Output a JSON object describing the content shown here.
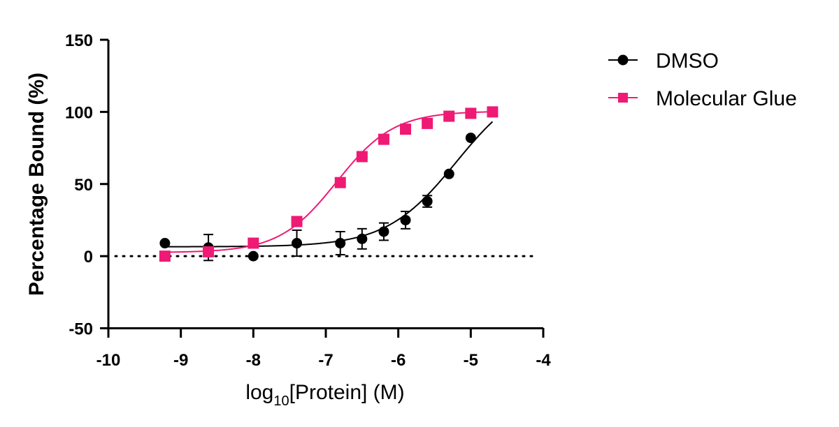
{
  "chart_data": {
    "type": "scatter",
    "xlabel": {
      "prefix": "log",
      "subscript": "10",
      "suffix": "[Protein] (M)"
    },
    "ylabel": "Percentage Bound (%)",
    "xlim": [
      -10,
      -4
    ],
    "ylim": [
      -50,
      150
    ],
    "x_ticks": [
      -10,
      -9,
      -8,
      -7,
      -6,
      -5,
      -4
    ],
    "y_ticks": [
      -50,
      0,
      50,
      100,
      150
    ],
    "grid": false,
    "reference_line": {
      "y": 0,
      "style": "dotted"
    },
    "legend_position": "top-right",
    "series": [
      {
        "name": "DMSO",
        "color": "#000000",
        "marker": "circle",
        "x": [
          -9.22,
          -8.62,
          -8.0,
          -7.4,
          -6.8,
          -6.5,
          -6.2,
          -5.9,
          -5.6,
          -5.3,
          -5.0,
          -4.7
        ],
        "y": [
          9,
          6,
          0,
          9,
          9,
          12,
          17,
          25,
          38,
          57,
          82,
          100
        ],
        "error": [
          0,
          9,
          0,
          9,
          8,
          7,
          6,
          6,
          4,
          0,
          0,
          0
        ],
        "fit": {
          "bottom": 6.5,
          "top": 124,
          "log_ec50": -5.2,
          "hill": 0.9
        }
      },
      {
        "name": "Molecular Glue",
        "color": "#ee1a74",
        "marker": "square",
        "x": [
          -9.22,
          -8.62,
          -8.0,
          -7.4,
          -6.8,
          -6.5,
          -6.2,
          -5.9,
          -5.6,
          -5.3,
          -5.0,
          -4.7
        ],
        "y": [
          0,
          3,
          9,
          24,
          51,
          69,
          81,
          88,
          92,
          97,
          99,
          100
        ],
        "error": [
          0,
          0,
          0,
          0,
          0,
          0,
          0,
          0,
          0,
          0,
          0,
          0
        ],
        "fit": {
          "bottom": 2.5,
          "top": 100.5,
          "log_ec50": -6.85,
          "hill": 1.1
        }
      }
    ]
  }
}
